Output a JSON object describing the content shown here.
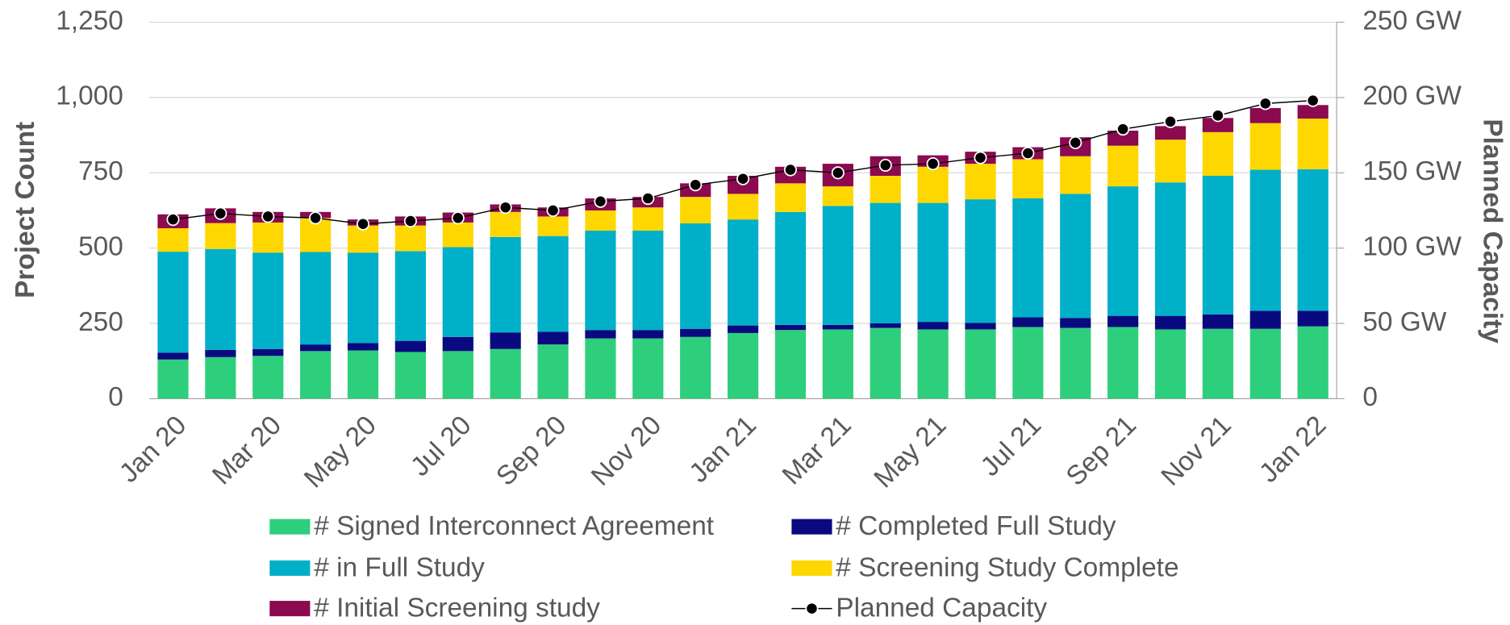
{
  "chart_data": {
    "type": "bar",
    "stacked": true,
    "categories": [
      "Jan 20",
      null,
      "Mar 20",
      null,
      "May 20",
      null,
      "Jul 20",
      null,
      "Sep 20",
      null,
      "Nov 20",
      null,
      "Jan 21",
      null,
      "Mar 21",
      null,
      "May 21",
      null,
      "Jul 21",
      null,
      "Sep 21",
      null,
      "Nov 21",
      null,
      "Jan 22"
    ],
    "ylabel": "Project Count",
    "y2label": "Planned Capacity",
    "ylim": [
      0,
      1250
    ],
    "yticks": [
      0,
      250,
      500,
      750,
      {
        "value": 1000,
        "label": "1,000"
      },
      {
        "value": 1250,
        "label": "1,250"
      }
    ],
    "y2lim": [
      0,
      250
    ],
    "y2ticks": [
      0,
      {
        "value": 50,
        "label": "50 GW"
      },
      {
        "value": 100,
        "label": "100 GW"
      },
      {
        "value": 150,
        "label": "150 GW"
      },
      {
        "value": 200,
        "label": "200 GW"
      },
      {
        "value": 250,
        "label": "250 GW"
      }
    ],
    "grid": true,
    "legend": "bottom",
    "series": [
      {
        "name": "# Signed Interconnect Agreement",
        "color": "#2ecf7c",
        "values": [
          130,
          138,
          142,
          158,
          160,
          155,
          158,
          165,
          180,
          200,
          200,
          205,
          218,
          228,
          230,
          235,
          230,
          230,
          238,
          235,
          238,
          230,
          232,
          232,
          240
        ]
      },
      {
        "name": "# Completed Full Study",
        "color": "#0a0a80",
        "values": [
          23,
          24,
          23,
          22,
          25,
          37,
          47,
          55,
          42,
          28,
          28,
          27,
          25,
          17,
          15,
          15,
          25,
          22,
          32,
          33,
          37,
          45,
          48,
          60,
          52
        ]
      },
      {
        "name": "# in Full Study",
        "color": "#00afc8",
        "values": [
          335,
          335,
          320,
          307,
          300,
          298,
          298,
          317,
          318,
          330,
          330,
          350,
          352,
          375,
          395,
          400,
          395,
          410,
          395,
          412,
          430,
          443,
          460,
          468,
          470
        ]
      },
      {
        "name": "# Screening Study Complete",
        "color": "#ffd700",
        "values": [
          78,
          86,
          100,
          113,
          90,
          85,
          82,
          83,
          65,
          67,
          77,
          88,
          85,
          95,
          65,
          90,
          120,
          118,
          130,
          125,
          135,
          142,
          145,
          155,
          168
        ]
      },
      {
        "name": "# Initial Screening study",
        "color": "#8b0a50",
        "values": [
          46,
          49,
          35,
          20,
          20,
          30,
          33,
          25,
          30,
          40,
          35,
          45,
          60,
          55,
          75,
          65,
          38,
          40,
          40,
          63,
          50,
          45,
          47,
          50,
          45
        ]
      },
      {
        "name": "Planned Capacity",
        "type": "line",
        "axis": "y2",
        "color": "#000000",
        "values": [
          119,
          123,
          121,
          120,
          116,
          118,
          120,
          127,
          125,
          131,
          133,
          142,
          146,
          152,
          150,
          155,
          156,
          160,
          163,
          170,
          179,
          184,
          188,
          196,
          198
        ]
      }
    ]
  }
}
